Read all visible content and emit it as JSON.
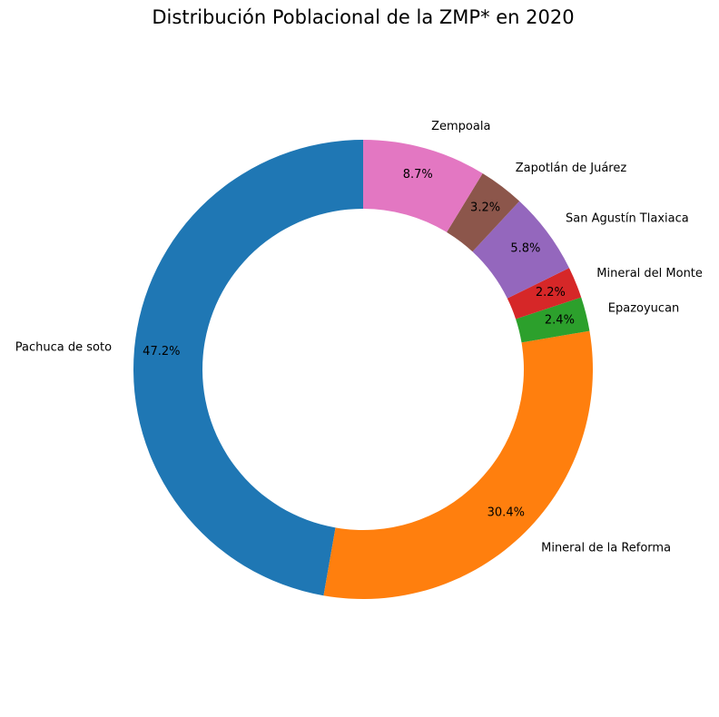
{
  "chart_data": {
    "type": "pie",
    "variant": "donut",
    "title": "Distribución Poblacional de la ZMP* en 2020",
    "start_angle_deg": 90,
    "direction": "counterclockwise",
    "legend": "none",
    "slices": [
      {
        "label": "Pachuca de soto",
        "value": 47.2,
        "pct_label": "47.2%",
        "color": "#1f77b4"
      },
      {
        "label": "Mineral de la Reforma",
        "value": 30.4,
        "pct_label": "30.4%",
        "color": "#ff7f0e"
      },
      {
        "label": "Epazoyucan",
        "value": 2.4,
        "pct_label": "2.4%",
        "color": "#2ca02c"
      },
      {
        "label": "Mineral del Monte",
        "value": 2.2,
        "pct_label": "2.2%",
        "color": "#d62728"
      },
      {
        "label": "San Agustín Tlaxiaca",
        "value": 5.8,
        "pct_label": "5.8%",
        "color": "#9467bd"
      },
      {
        "label": "Zapotlán de Juárez",
        "value": 3.2,
        "pct_label": "3.2%",
        "color": "#8c564b"
      },
      {
        "label": "Zempoala",
        "value": 8.7,
        "pct_label": "8.7%",
        "color": "#e377c2"
      }
    ]
  }
}
